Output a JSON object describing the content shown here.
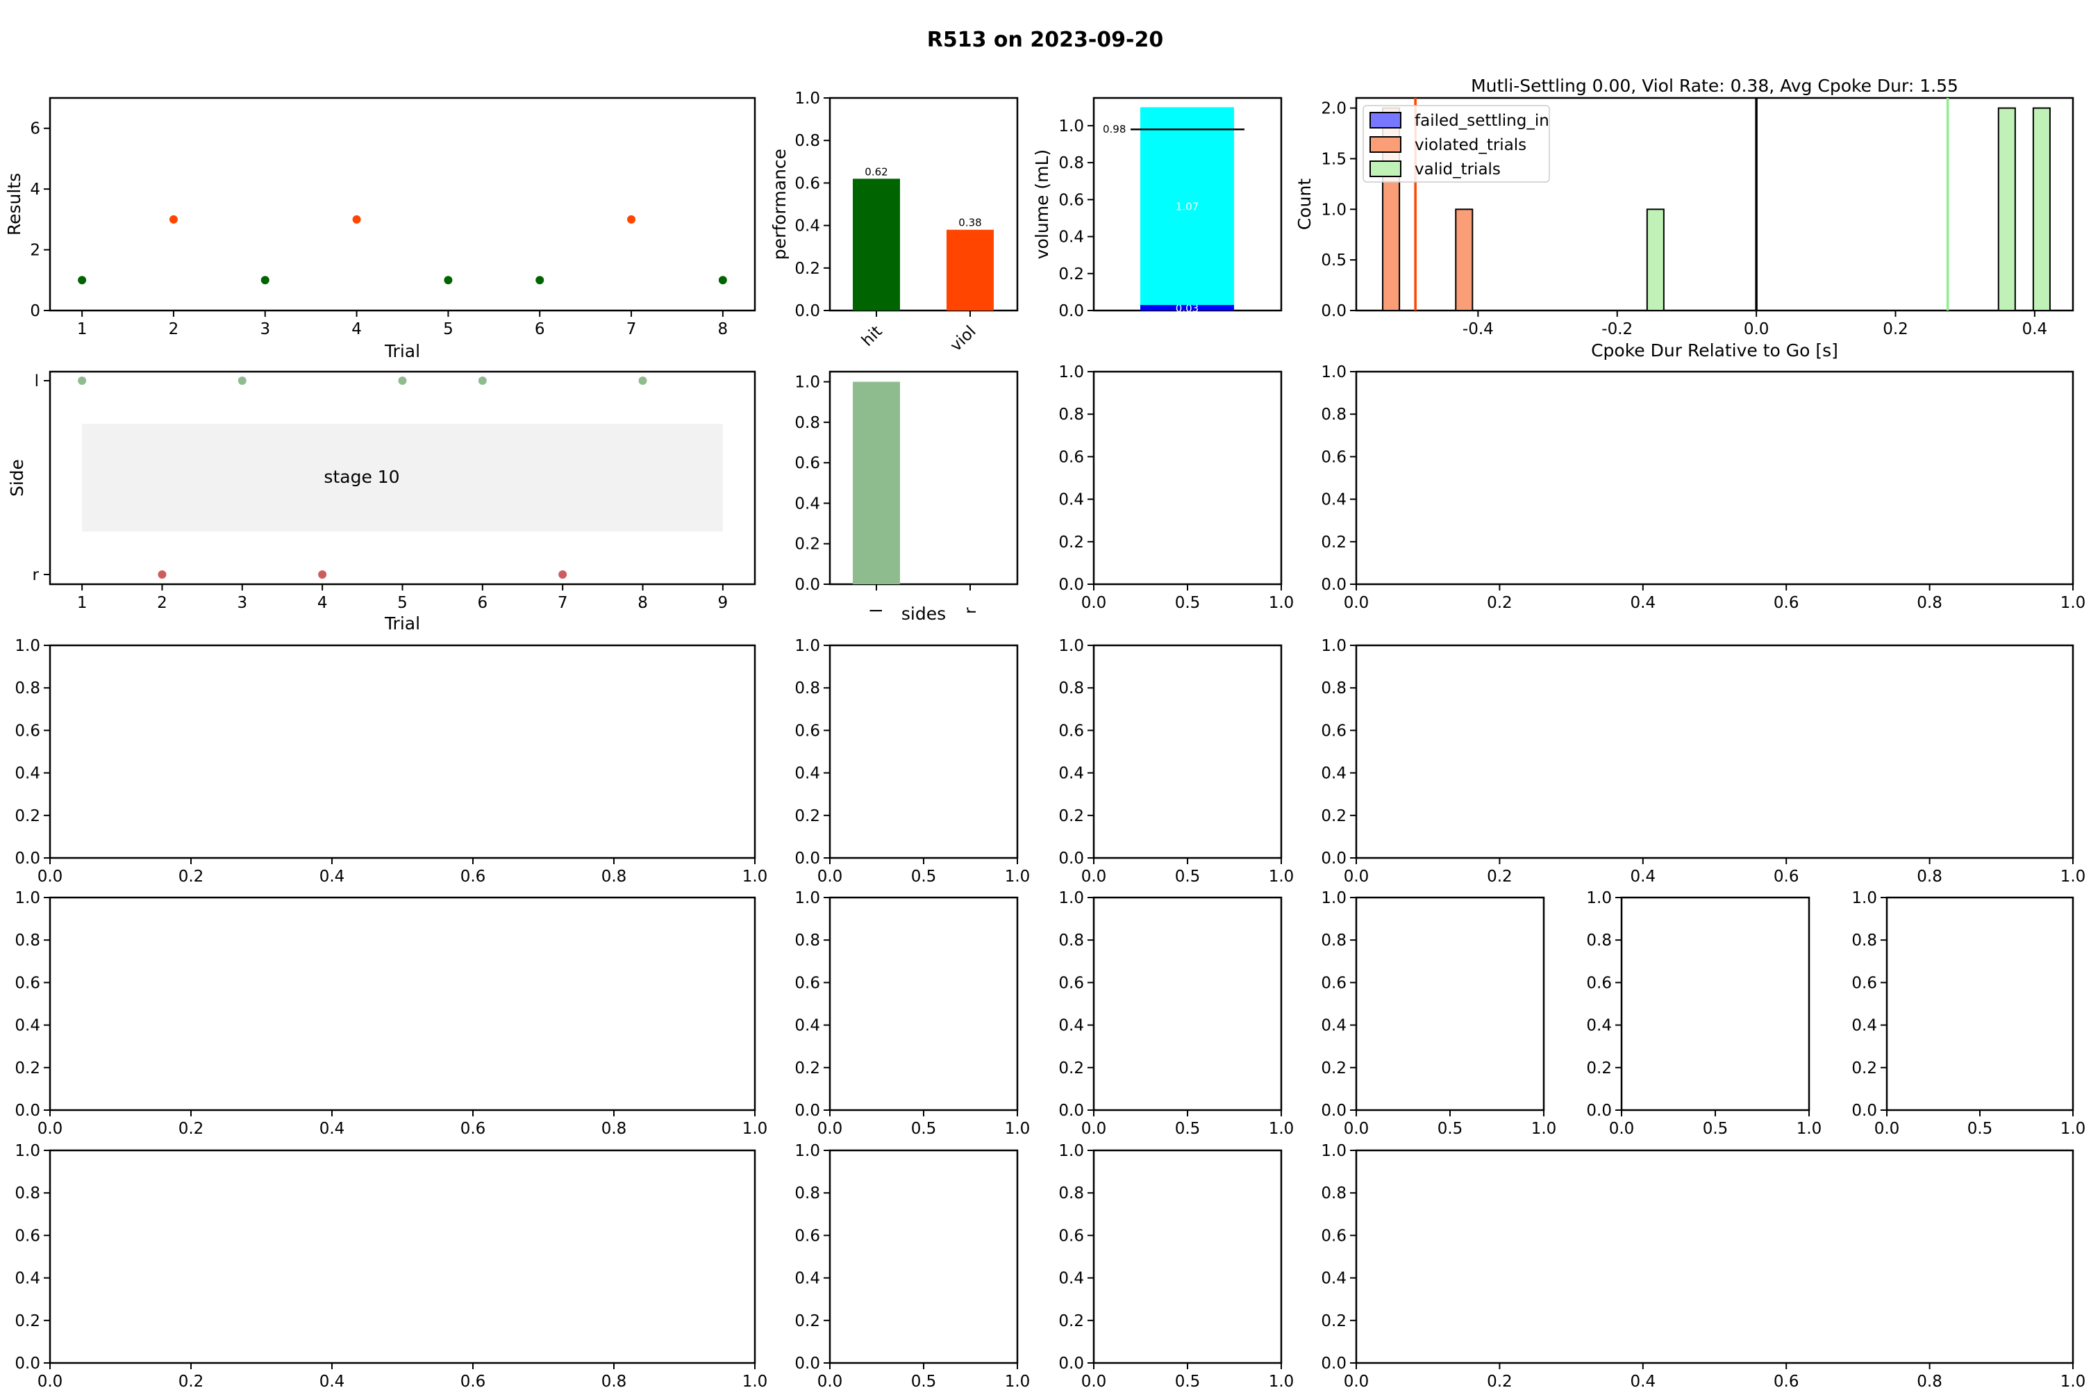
{
  "suptitle": "R513 on 2023-09-20",
  "chart_data": [
    {
      "id": "results",
      "type": "scatter",
      "xlabel": "Trial",
      "ylabel": "Results",
      "xlim": [
        0.65,
        8.35
      ],
      "ylim": [
        0,
        7
      ],
      "xticks": [
        1,
        2,
        3,
        4,
        5,
        6,
        7,
        8
      ],
      "yticks": [
        0,
        2,
        4,
        6
      ],
      "x": [
        1,
        2,
        3,
        4,
        5,
        6,
        7,
        8
      ],
      "y": [
        1,
        3,
        1,
        3,
        1,
        1,
        3,
        1
      ],
      "colors": [
        "#006400",
        "#ff4500",
        "#006400",
        "#ff4500",
        "#006400",
        "#006400",
        "#ff4500",
        "#006400"
      ]
    },
    {
      "id": "performance",
      "type": "bar",
      "ylabel": "performance",
      "categories": [
        "hit",
        "viol"
      ],
      "values": [
        0.62,
        0.38
      ],
      "labels": [
        "0.62",
        "0.38"
      ],
      "colors": [
        "#006400",
        "#ff4500"
      ],
      "ylim": [
        0,
        1
      ],
      "yticks": [
        "0.0",
        "0.2",
        "0.4",
        "0.6",
        "0.8",
        "1.0"
      ]
    },
    {
      "id": "volume",
      "type": "bar",
      "stacked": true,
      "ylabel": "volume (mL)",
      "values": [
        0.03,
        1.07
      ],
      "labels": [
        "0.03",
        "1.07"
      ],
      "colors": [
        "#0000ff",
        "#00ffff"
      ],
      "target_line": 0.98,
      "target_label": "0.98",
      "ylim": [
        0,
        1.15
      ],
      "yticks": [
        "0.0",
        "0.2",
        "0.4",
        "0.6",
        "0.8",
        "1.0"
      ]
    },
    {
      "id": "cpoke-hist",
      "type": "bar",
      "title": "Mutli-Settling 0.00, Viol Rate: 0.38,  Avg Cpoke Dur: 1.55",
      "xlabel": "Cpoke Dur Relative to Go [s]",
      "ylabel": "Count",
      "xlim": [
        -0.575,
        0.455
      ],
      "ylim": [
        0,
        2.1
      ],
      "xticks": [
        "-0.4",
        "-0.2",
        "0.0",
        "0.2",
        "0.4"
      ],
      "xtick_values": [
        -0.4,
        -0.2,
        0.0,
        0.2,
        0.4
      ],
      "yticks": [
        "0.0",
        "0.5",
        "1.0",
        "1.5",
        "2.0"
      ],
      "ytick_values": [
        0,
        0.5,
        1.0,
        1.5,
        2.0
      ],
      "series": [
        {
          "name": "failed_settling_in",
          "color": "#7777ff",
          "bars": []
        },
        {
          "name": "violated_trials",
          "color": "#fa9e78",
          "bars": [
            [
              -0.525,
              2
            ],
            [
              -0.42,
              1
            ]
          ]
        },
        {
          "name": "valid_trials",
          "color": "#c0f2b7",
          "bars": [
            [
              -0.145,
              1
            ],
            [
              0.36,
              2
            ],
            [
              0.41,
              2
            ]
          ]
        }
      ],
      "vlines": [
        {
          "x": -0.49,
          "color": "#ff4500"
        },
        {
          "x": 0.0,
          "color": "#000000"
        },
        {
          "x": 0.275,
          "color": "#90ee90"
        }
      ]
    },
    {
      "id": "side-plot",
      "type": "scatter",
      "xlabel": "Trial",
      "ylabel": "Side",
      "xlim": [
        0.6,
        9.4
      ],
      "xticks": [
        1,
        2,
        3,
        4,
        5,
        6,
        7,
        8,
        9
      ],
      "yticks": [
        "l",
        "r"
      ],
      "l_trials": [
        1,
        3,
        5,
        6,
        8
      ],
      "r_trials": [
        2,
        4,
        7
      ],
      "l_color": "#8fbc8f",
      "r_color": "#cd5c5c",
      "stage_label": "stage 10",
      "stage_span": [
        1,
        9
      ]
    },
    {
      "id": "sides-bar",
      "type": "bar",
      "xlabel": "sides",
      "categories": [
        "l",
        "r"
      ],
      "values": [
        1.0,
        0
      ],
      "colors": [
        "#8fbc8f",
        "#cd5c5c"
      ],
      "ylim": [
        0,
        1.05
      ],
      "yticks": [
        "0.0",
        "0.2",
        "0.4",
        "0.6",
        "0.8",
        "1.0"
      ]
    }
  ],
  "empty_ticks": {
    "y": [
      "0.0",
      "0.2",
      "0.4",
      "0.6",
      "0.8",
      "1.0"
    ],
    "x_fine": [
      "0.0",
      "0.2",
      "0.4",
      "0.6",
      "0.8",
      "1.0"
    ],
    "x_coarse": [
      "0.0",
      "0.5",
      "1.0"
    ]
  }
}
